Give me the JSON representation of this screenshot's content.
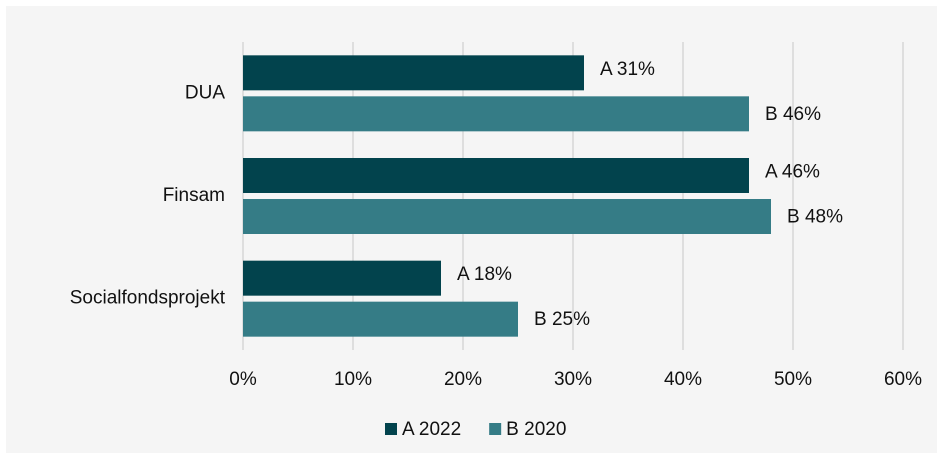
{
  "chart_data": {
    "type": "bar",
    "orientation": "horizontal",
    "categories": [
      "DUA",
      "Finsam",
      "Socialfondsprojekt"
    ],
    "series": [
      {
        "name": "A 2022",
        "color": "#02434d",
        "values": [
          31,
          46,
          18
        ],
        "value_labels": [
          "A 31%",
          "A 46%",
          "A 18%"
        ]
      },
      {
        "name": "B 2020",
        "color": "#357c86",
        "values": [
          46,
          48,
          25
        ],
        "value_labels": [
          "B 46%",
          "B 48%",
          "B 25%"
        ]
      }
    ],
    "xlim": [
      0,
      60
    ],
    "xticks": [
      {
        "value": 0,
        "label": "0%"
      },
      {
        "value": 10,
        "label": "10%"
      },
      {
        "value": 20,
        "label": "20%"
      },
      {
        "value": 30,
        "label": "30%"
      },
      {
        "value": 40,
        "label": "40%"
      },
      {
        "value": 50,
        "label": "50%"
      },
      {
        "value": 60,
        "label": "60%"
      }
    ],
    "grid": true,
    "legend": "bottom"
  }
}
